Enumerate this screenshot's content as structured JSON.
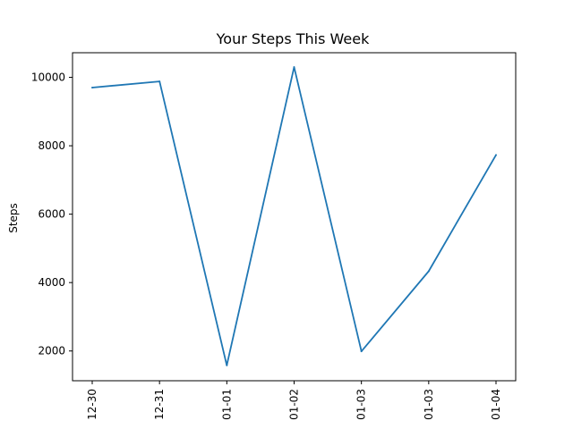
{
  "chart_data": {
    "type": "line",
    "title": "Your Steps This Week",
    "xlabel": "",
    "ylabel": "Steps",
    "categories": [
      "12-30",
      "12-31",
      "01-01",
      "01-02",
      "01-03",
      "01-03",
      "01-04"
    ],
    "series": [
      {
        "values": [
          9700,
          9880,
          1580,
          10300,
          1990,
          4330,
          7730
        ],
        "color": "#1f77b4"
      }
    ],
    "ylim": [
      1130,
      10720
    ],
    "yticks": [
      2000,
      4000,
      6000,
      8000,
      10000
    ],
    "grid": false
  }
}
